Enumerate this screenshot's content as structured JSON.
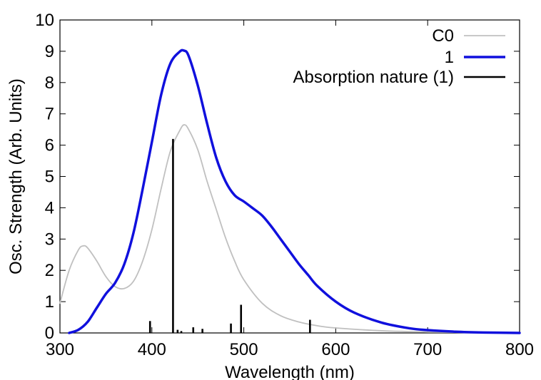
{
  "chart_data": {
    "type": "line",
    "xlabel": "Wavelength (nm)",
    "ylabel": "Osc. Strength (Arb. Units)",
    "xlim": [
      300,
      800
    ],
    "ylim": [
      0,
      10
    ],
    "xticks": [
      300,
      400,
      500,
      600,
      700,
      800
    ],
    "yticks": [
      0,
      1,
      2,
      3,
      4,
      5,
      6,
      7,
      8,
      9,
      10
    ],
    "grid": false,
    "legend_position": "top-right",
    "series": [
      {
        "name": "C0",
        "kind": "line",
        "color": "#c0c0c0",
        "x": [
          300,
          310,
          320,
          325,
          330,
          340,
          350,
          360,
          370,
          380,
          390,
          400,
          410,
          420,
          430,
          435,
          440,
          450,
          460,
          470,
          480,
          490,
          500,
          520,
          540,
          560,
          580,
          600,
          650,
          700,
          750,
          800
        ],
        "y": [
          0.95,
          2.0,
          2.65,
          2.78,
          2.72,
          2.3,
          1.8,
          1.48,
          1.42,
          1.65,
          2.3,
          3.3,
          4.6,
          5.8,
          6.45,
          6.65,
          6.5,
          5.85,
          4.85,
          3.95,
          3.05,
          2.3,
          1.7,
          0.95,
          0.55,
          0.35,
          0.23,
          0.16,
          0.07,
          0.03,
          0.015,
          0.01
        ]
      },
      {
        "name": "1",
        "kind": "line",
        "color": "#1010dd",
        "x": [
          310,
          320,
          330,
          340,
          350,
          360,
          370,
          380,
          390,
          400,
          410,
          420,
          430,
          435,
          440,
          450,
          460,
          470,
          480,
          490,
          500,
          510,
          520,
          530,
          540,
          550,
          560,
          570,
          580,
          600,
          620,
          650,
          680,
          700,
          730,
          760,
          800
        ],
        "y": [
          0.0,
          0.1,
          0.35,
          0.8,
          1.25,
          1.6,
          2.2,
          3.2,
          4.6,
          6.1,
          7.6,
          8.6,
          8.98,
          9.02,
          8.85,
          7.9,
          6.7,
          5.6,
          4.85,
          4.4,
          4.2,
          3.98,
          3.75,
          3.4,
          3.0,
          2.6,
          2.2,
          1.85,
          1.5,
          1.0,
          0.65,
          0.33,
          0.15,
          0.09,
          0.04,
          0.015,
          0.0
        ]
      },
      {
        "name": "Absorption nature (1)",
        "kind": "stick",
        "color": "#000000",
        "x": [
          398,
          423,
          428,
          432,
          445,
          455,
          486,
          497,
          572
        ],
        "y": [
          0.38,
          6.2,
          0.1,
          0.06,
          0.18,
          0.13,
          0.3,
          0.9,
          0.42
        ]
      }
    ]
  }
}
